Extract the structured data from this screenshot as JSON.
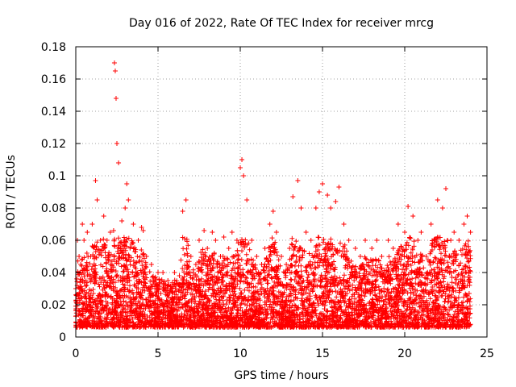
{
  "chart_data": {
    "type": "scatter",
    "title": "Day 016 of 2022, Rate Of TEC Index for receiver mrcg",
    "xlabel": "GPS time / hours",
    "ylabel": "ROTI / TECUs",
    "xlim": [
      0,
      25
    ],
    "ylim": [
      0,
      0.18
    ],
    "x_ticks": [
      0,
      5,
      10,
      15,
      20,
      25
    ],
    "x_tick_labels": [
      "0",
      "5",
      "10",
      "15",
      "20",
      "25"
    ],
    "y_ticks": [
      0,
      0.02,
      0.04,
      0.06,
      0.08,
      0.1,
      0.12,
      0.14,
      0.16,
      0.18
    ],
    "y_tick_labels": [
      "0",
      "0.02",
      "0.04",
      "0.06",
      "0.08",
      "0.1",
      "0.12",
      "0.14",
      "0.16",
      "0.18"
    ],
    "grid": true,
    "marker": "+",
    "color": "#ff0000",
    "data_range_x": [
      0,
      24
    ],
    "series": [
      {
        "name": "ROTI",
        "x": [
          0.0,
          0.1,
          0.2,
          0.3,
          0.4,
          0.5,
          0.7,
          0.9,
          1.0,
          1.2,
          1.3,
          1.5,
          1.7,
          1.9,
          2.1,
          2.3,
          2.35,
          2.4,
          2.45,
          2.5,
          2.6,
          2.8,
          3.0,
          3.1,
          3.2,
          3.5,
          3.8,
          4.0,
          4.1,
          4.3,
          4.6,
          5.0,
          5.3,
          5.6,
          6.0,
          6.3,
          6.5,
          6.7,
          7.0,
          7.3,
          7.5,
          7.8,
          8.0,
          8.3,
          8.5,
          8.8,
          9.0,
          9.3,
          9.5,
          9.8,
          10.0,
          10.1,
          10.2,
          10.4,
          10.7,
          11.0,
          11.3,
          11.5,
          11.8,
          12.0,
          12.2,
          12.5,
          12.8,
          13.0,
          13.2,
          13.5,
          13.7,
          14.0,
          14.3,
          14.6,
          14.8,
          15.0,
          15.3,
          15.5,
          15.8,
          16.0,
          16.3,
          16.6,
          17.0,
          17.3,
          17.6,
          18.0,
          18.3,
          18.6,
          19.0,
          19.3,
          19.6,
          20.0,
          20.2,
          20.5,
          20.8,
          21.0,
          21.3,
          21.6,
          22.0,
          22.3,
          22.5,
          22.8,
          23.0,
          23.3,
          23.6,
          23.8,
          24.0
        ],
        "y": [
          0.03,
          0.06,
          0.05,
          0.045,
          0.07,
          0.06,
          0.065,
          0.05,
          0.07,
          0.097,
          0.085,
          0.06,
          0.075,
          0.06,
          0.065,
          0.066,
          0.17,
          0.165,
          0.148,
          0.12,
          0.108,
          0.072,
          0.08,
          0.095,
          0.085,
          0.07,
          0.06,
          0.068,
          0.066,
          0.05,
          0.045,
          0.04,
          0.04,
          0.035,
          0.04,
          0.038,
          0.078,
          0.085,
          0.05,
          0.045,
          0.06,
          0.066,
          0.055,
          0.065,
          0.06,
          0.05,
          0.062,
          0.055,
          0.065,
          0.06,
          0.105,
          0.11,
          0.1,
          0.085,
          0.06,
          0.05,
          0.045,
          0.055,
          0.07,
          0.078,
          0.065,
          0.05,
          0.045,
          0.055,
          0.087,
          0.097,
          0.08,
          0.065,
          0.06,
          0.08,
          0.09,
          0.095,
          0.088,
          0.08,
          0.084,
          0.093,
          0.07,
          0.06,
          0.055,
          0.05,
          0.06,
          0.055,
          0.06,
          0.05,
          0.06,
          0.055,
          0.07,
          0.065,
          0.081,
          0.075,
          0.06,
          0.065,
          0.05,
          0.07,
          0.085,
          0.08,
          0.092,
          0.06,
          0.065,
          0.06,
          0.07,
          0.075,
          0.065
        ]
      }
    ]
  }
}
